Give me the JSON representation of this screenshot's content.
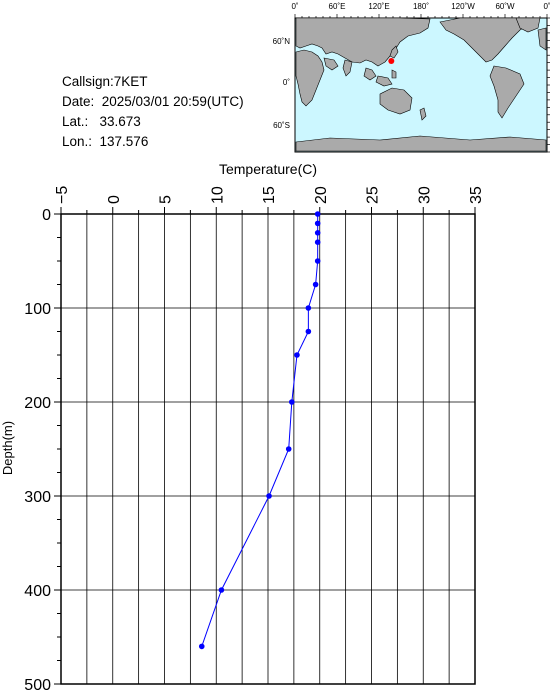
{
  "info": {
    "callsign": "Callsign:7KET",
    "date": "Date:  2025/03/01 20:59(UTC)",
    "lat": "Lat.:   33.673",
    "lon": "Lon.:  137.576"
  },
  "map": {
    "top_labels": [
      "0˚",
      "60˚E",
      "120˚E",
      "180˚",
      "120˚W",
      "60˚W",
      "0˚"
    ],
    "left_labels": [
      "60˚N",
      "0˚",
      "60˚S"
    ],
    "ocean_color": "#ccf7ff",
    "land_color": "#aaaaaa",
    "marker_color": "#ff0000",
    "marker_lon": 137.576,
    "marker_lat": 33.673
  },
  "chart_data": {
    "type": "line",
    "title": "",
    "xlabel": "Temperature(C)",
    "ylabel": "Depth(m)",
    "xlim": [
      -5,
      35
    ],
    "ylim": [
      0,
      500
    ],
    "x_ticks": [
      "−5",
      "0",
      "5",
      "10",
      "15",
      "20",
      "25",
      "30",
      "35"
    ],
    "y_ticks": [
      "0",
      "100",
      "200",
      "300",
      "400",
      "500"
    ],
    "grid": true,
    "series": [
      {
        "color": "#0000ff",
        "points": [
          {
            "temp": 19.8,
            "depth": 0
          },
          {
            "temp": 19.8,
            "depth": 10
          },
          {
            "temp": 19.8,
            "depth": 20
          },
          {
            "temp": 19.8,
            "depth": 30
          },
          {
            "temp": 19.8,
            "depth": 50
          },
          {
            "temp": 19.6,
            "depth": 75
          },
          {
            "temp": 18.9,
            "depth": 100
          },
          {
            "temp": 18.9,
            "depth": 125
          },
          {
            "temp": 17.8,
            "depth": 150
          },
          {
            "temp": 17.3,
            "depth": 200
          },
          {
            "temp": 17.0,
            "depth": 250
          },
          {
            "temp": 15.1,
            "depth": 300
          },
          {
            "temp": 10.5,
            "depth": 400
          },
          {
            "temp": 8.6,
            "depth": 460
          }
        ]
      }
    ]
  }
}
